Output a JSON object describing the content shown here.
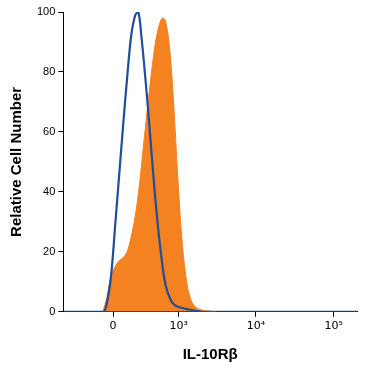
{
  "chart_data": {
    "type": "line",
    "x_label": "IL-10Rβ",
    "y_label": "Relative Cell Number",
    "xlim": [
      -600,
      200000
    ],
    "xticks": [
      0,
      {
        "value": 1000,
        "label": "10³"
      },
      {
        "value": 10000,
        "label": "10⁴"
      },
      {
        "value": 100000,
        "label": "10⁵"
      }
    ],
    "ylim": [
      0,
      100
    ],
    "yticks": [
      0,
      20,
      40,
      60,
      80,
      100
    ],
    "grid": false,
    "series": [
      {
        "type": "line",
        "color": "#1f4e9c",
        "x": [
          -600,
          -88,
          -53,
          -17,
          17,
          52,
          88,
          125,
          164,
          206,
          239,
          274,
          323,
          378,
          438,
          504,
          577,
          658,
          774,
          908,
          1240,
          2276,
          200000
        ],
        "values": [
          0,
          0,
          3,
          12,
          28,
          45,
          62,
          78,
          92,
          99,
          100,
          92,
          78,
          62,
          45,
          30,
          18,
          9,
          4,
          2,
          1,
          0,
          0
        ]
      },
      {
        "type": "area",
        "color": "#f58220",
        "x": [
          -88,
          -53,
          -17,
          17,
          52,
          88,
          125,
          164,
          206,
          250,
          298,
          351,
          409,
          471,
          540,
          597,
          658,
          750,
          850,
          969,
          1094,
          1240,
          1446,
          1790,
          3060
        ],
        "values": [
          0,
          5,
          12,
          15,
          17,
          18,
          20,
          25,
          32,
          42,
          55,
          68,
          80,
          90,
          96,
          98,
          97,
          88,
          70,
          45,
          25,
          12,
          4,
          1,
          0
        ]
      }
    ]
  }
}
